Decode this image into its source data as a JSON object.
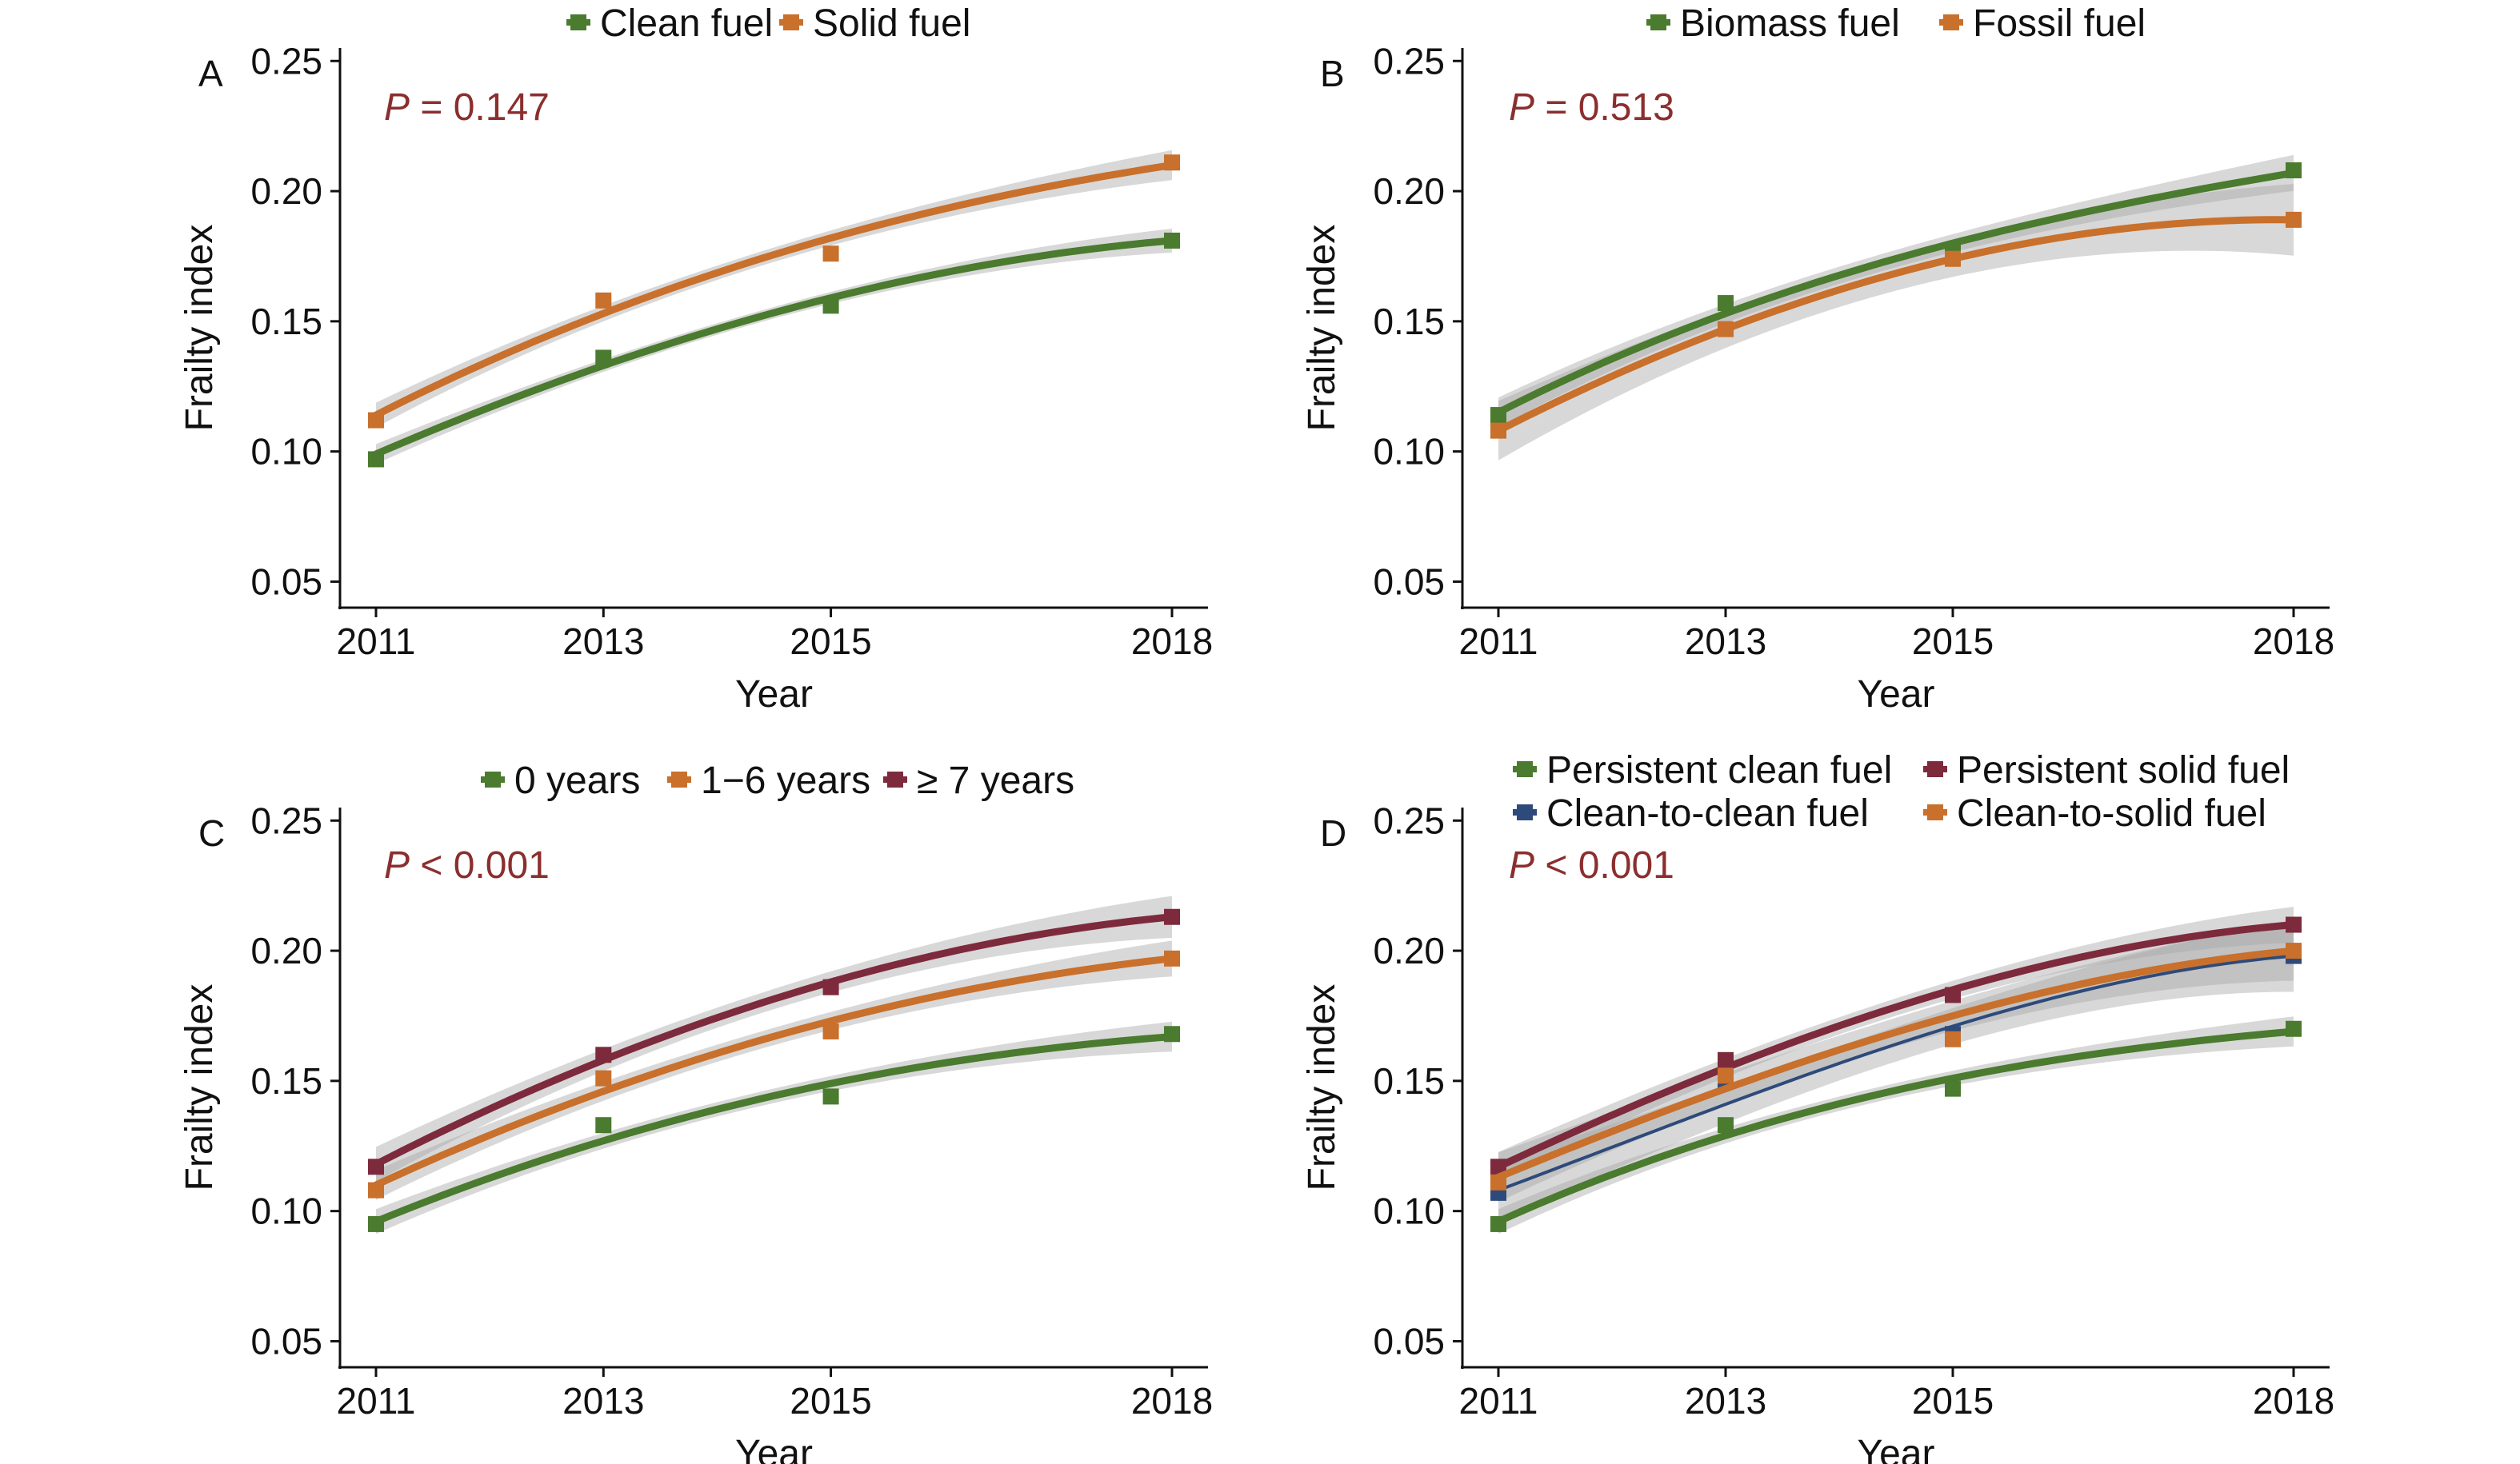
{
  "colors": {
    "green": "#4a7b2f",
    "orange": "#c8702c",
    "maroon": "#7d2a3d",
    "navy": "#2e4a7a",
    "band": "#a9a9a9",
    "pvalue": "#8b2e2e"
  },
  "chart_data": [
    {
      "type": "line",
      "panel": "A",
      "p_label": "P",
      "p_value": " = 0.147",
      "xlabel": "Year",
      "ylabel": "Frailty index",
      "x": [
        2011,
        2013,
        2015,
        2018
      ],
      "x_tick_labels": [
        "2011",
        "2013",
        "2015",
        "2018"
      ],
      "ylim": [
        0.04,
        0.255
      ],
      "y_ticks": [
        0.05,
        0.1,
        0.15,
        0.2,
        0.25
      ],
      "y_tick_labels": [
        "0.05",
        "0.10",
        "0.15",
        "0.20",
        "0.25"
      ],
      "legend_position": "top",
      "series": [
        {
          "name": "Clean fuel",
          "color": "green",
          "points": [
            0.097,
            0.136,
            0.156,
            0.181
          ],
          "fit": [
            0.099,
            0.133,
            0.159,
            0.181
          ],
          "band": 0.004
        },
        {
          "name": "Solid fuel",
          "color": "orange",
          "points": [
            0.112,
            0.158,
            0.176,
            0.211
          ],
          "fit": [
            0.114,
            0.153,
            0.182,
            0.21
          ],
          "band": 0.005
        }
      ]
    },
    {
      "type": "line",
      "panel": "B",
      "p_label": "P",
      "p_value": " = 0.513",
      "xlabel": "Year",
      "ylabel": "Frailty index",
      "x": [
        2011,
        2013,
        2015,
        2018
      ],
      "x_tick_labels": [
        "2011",
        "2013",
        "2015",
        "2018"
      ],
      "ylim": [
        0.04,
        0.255
      ],
      "y_ticks": [
        0.05,
        0.1,
        0.15,
        0.2,
        0.25
      ],
      "y_tick_labels": [
        "0.05",
        "0.10",
        "0.15",
        "0.20",
        "0.25"
      ],
      "legend_position": "top",
      "series": [
        {
          "name": "Biomass fuel",
          "color": "green",
          "points": [
            0.114,
            0.157,
            0.177,
            0.208
          ],
          "fit": [
            0.115,
            0.153,
            0.18,
            0.207
          ],
          "band": 0.006
        },
        {
          "name": "Fossil fuel",
          "color": "orange",
          "points": [
            0.108,
            0.147,
            0.174,
            0.189
          ],
          "fit": [
            0.108,
            0.147,
            0.174,
            0.189
          ],
          "band": 0.012
        }
      ]
    },
    {
      "type": "line",
      "panel": "C",
      "p_label": "P",
      "p_value": " < 0.001",
      "xlabel": "Year",
      "ylabel": "Frailty index",
      "x": [
        2011,
        2013,
        2015,
        2018
      ],
      "x_tick_labels": [
        "2011",
        "2013",
        "2015",
        "2018"
      ],
      "ylim": [
        0.04,
        0.255
      ],
      "y_ticks": [
        0.05,
        0.1,
        0.15,
        0.2,
        0.25
      ],
      "y_tick_labels": [
        "0.05",
        "0.10",
        "0.15",
        "0.20",
        "0.25"
      ],
      "legend_position": "top",
      "series": [
        {
          "name": "0 years",
          "color": "green",
          "points": [
            0.095,
            0.133,
            0.144,
            0.168
          ],
          "fit": [
            0.096,
            0.127,
            0.149,
            0.167
          ],
          "band": 0.005
        },
        {
          "name": "1−6 years",
          "color": "orange",
          "points": [
            0.108,
            0.151,
            0.169,
            0.197
          ],
          "fit": [
            0.11,
            0.146,
            0.173,
            0.197
          ],
          "band": 0.006
        },
        {
          "name": "≥ 7 years",
          "color": "maroon",
          "points": [
            0.117,
            0.16,
            0.186,
            0.213
          ],
          "fit": [
            0.118,
            0.158,
            0.188,
            0.213
          ],
          "band": 0.007
        }
      ]
    },
    {
      "type": "line",
      "panel": "D",
      "p_label": "P",
      "p_value": " < 0.001",
      "xlabel": "Year",
      "ylabel": "Frailty index",
      "x": [
        2011,
        2013,
        2015,
        2018
      ],
      "x_tick_labels": [
        "2011",
        "2013",
        "2015",
        "2018"
      ],
      "ylim": [
        0.04,
        0.255
      ],
      "y_ticks": [
        0.05,
        0.1,
        0.15,
        0.2,
        0.25
      ],
      "y_tick_labels": [
        "0.05",
        "0.10",
        "0.15",
        "0.20",
        "0.25"
      ],
      "legend_position": "top",
      "series": [
        {
          "name": "Persistent clean fuel",
          "color": "green",
          "points": [
            0.095,
            0.133,
            0.147,
            0.17
          ],
          "fit": [
            0.096,
            0.129,
            0.151,
            0.169
          ],
          "band": 0.005
        },
        {
          "name": "Persistent solid fuel",
          "color": "maroon",
          "points": [
            0.117,
            0.158,
            0.183,
            0.21
          ],
          "fit": [
            0.117,
            0.155,
            0.185,
            0.21
          ],
          "band": 0.006
        },
        {
          "name": "Clean-to-clean fuel",
          "color": "navy",
          "points": [
            0.107,
            0.15,
            0.168,
            0.198
          ],
          "fit": [
            0.108,
            0.141,
            0.171,
            0.198
          ],
          "band": 0.012
        },
        {
          "name": "Clean-to-solid fuel",
          "color": "orange",
          "points": [
            0.111,
            0.152,
            0.166,
            0.2
          ],
          "fit": [
            0.113,
            0.147,
            0.175,
            0.2
          ],
          "band": 0.01
        }
      ]
    }
  ]
}
